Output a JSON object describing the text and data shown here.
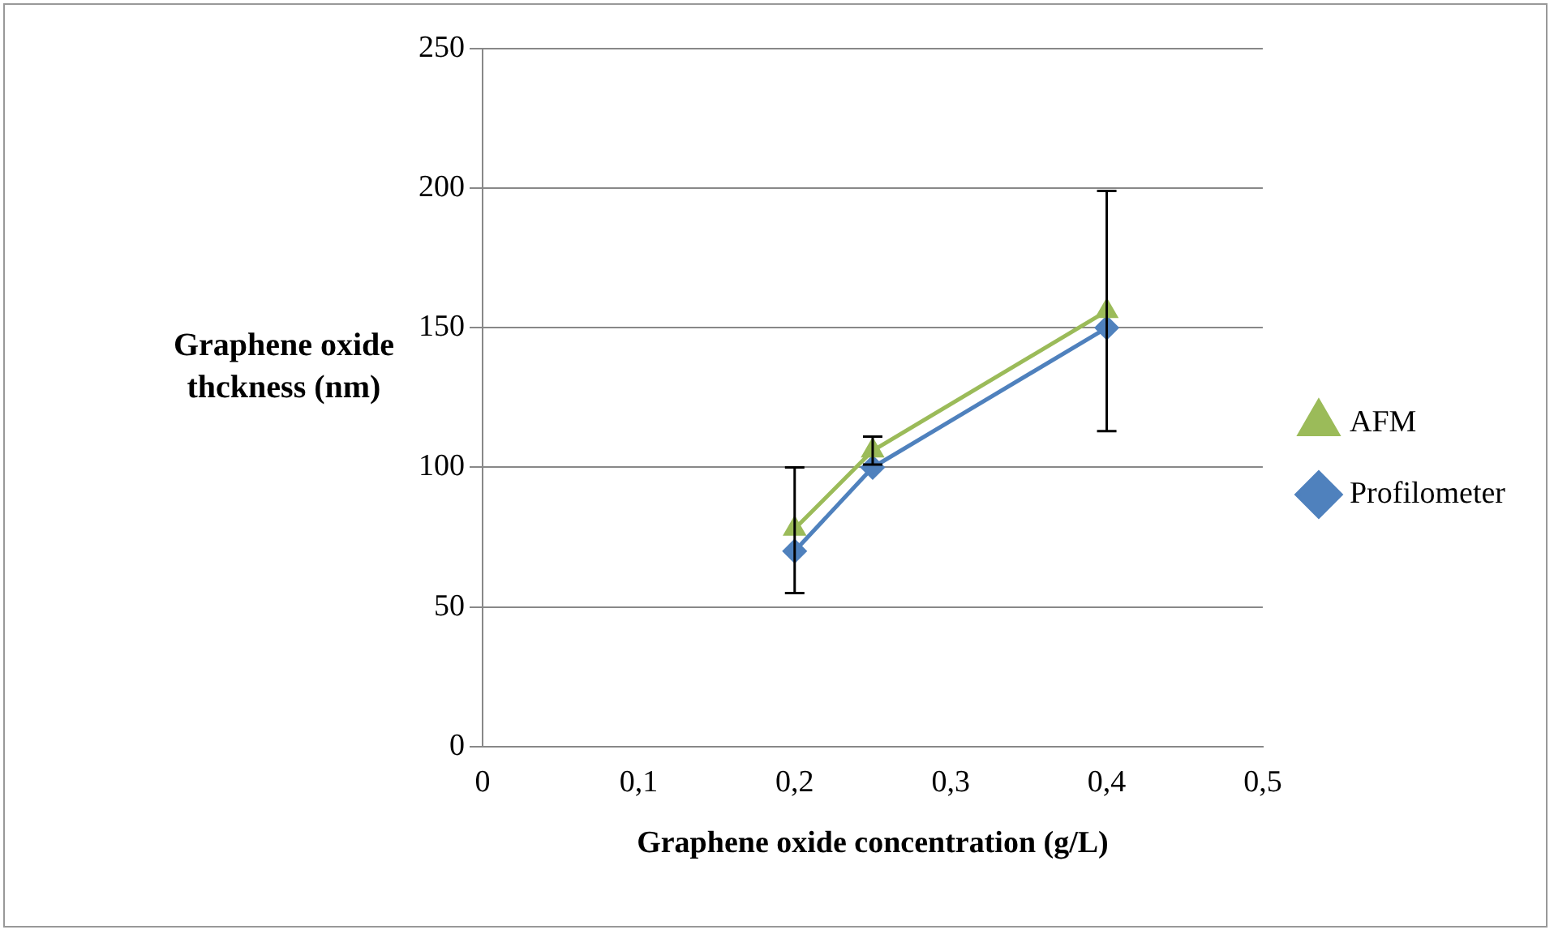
{
  "chart_data": {
    "type": "line",
    "xlabel": "Graphene oxide concentration (g/L)",
    "ylabel": "Graphene oxide thckness (nm)",
    "series": [
      {
        "name": "AFM",
        "color": "#9bbb59",
        "marker": "triangle",
        "x": [
          0.2,
          0.25,
          0.4
        ],
        "values": [
          78,
          106,
          156
        ],
        "errors": [
          [
            55,
            100
          ],
          [
            101,
            111
          ],
          [
            113,
            199
          ]
        ]
      },
      {
        "name": "Profilometer",
        "color": "#4f81bd",
        "marker": "diamond",
        "x": [
          0.2,
          0.25,
          0.4
        ],
        "values": [
          70,
          100,
          150
        ]
      }
    ],
    "xlim": [
      0,
      0.5
    ],
    "xticks": [
      0,
      {
        "value": 0.1,
        "label": "0,1"
      },
      {
        "value": 0.2,
        "label": "0,2"
      },
      {
        "value": 0.3,
        "label": "0,3"
      },
      {
        "value": 0.4,
        "label": "0,4"
      },
      {
        "value": 0.5,
        "label": "0,5"
      }
    ],
    "ylim": [
      0,
      250
    ],
    "yticks": [
      0,
      50,
      100,
      150,
      200,
      250
    ],
    "grid": "y",
    "legend": "right"
  }
}
